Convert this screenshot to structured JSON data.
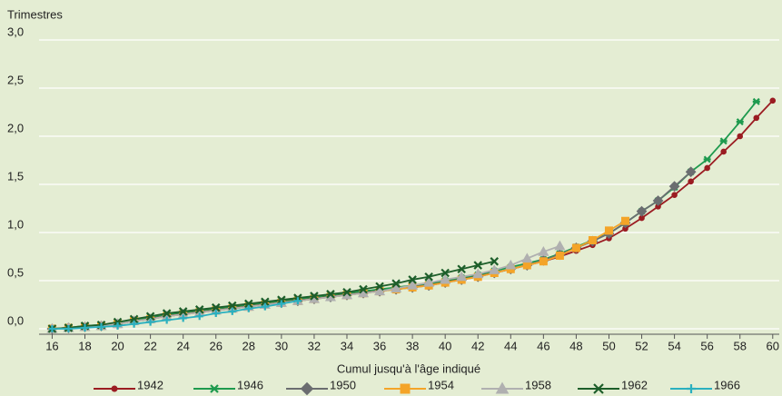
{
  "chart_data": {
    "type": "line",
    "y_label": "Trimestres",
    "x_label": "Cumul jusqu'à l'âge indiqué",
    "x": [
      16,
      17,
      18,
      19,
      20,
      21,
      22,
      23,
      24,
      25,
      26,
      27,
      28,
      29,
      30,
      31,
      32,
      33,
      34,
      35,
      36,
      37,
      38,
      39,
      40,
      41,
      42,
      43,
      44,
      45,
      46,
      47,
      48,
      49,
      50,
      51,
      52,
      53,
      54,
      55,
      56,
      57,
      58,
      59,
      60
    ],
    "xlim": [
      15.2,
      60.4
    ],
    "xticks": [
      16,
      18,
      20,
      22,
      24,
      26,
      28,
      30,
      32,
      34,
      36,
      38,
      40,
      42,
      44,
      46,
      48,
      50,
      52,
      54,
      56,
      58,
      60
    ],
    "ylim": [
      0,
      3
    ],
    "yticks": [
      {
        "value": 0,
        "label": "0,0"
      },
      {
        "value": 0.5,
        "label": "0,5"
      },
      {
        "value": 1,
        "label": "1,0"
      },
      {
        "value": 1.5,
        "label": "1,5"
      },
      {
        "value": 2,
        "label": "2,0"
      },
      {
        "value": 2.5,
        "label": "2,5"
      },
      {
        "value": 3,
        "label": "3,0"
      }
    ],
    "grid": true,
    "series": [
      {
        "name": "1942",
        "color": "#9b1c22",
        "marker": "circle",
        "values": [
          0,
          0.01,
          0.02,
          0.03,
          0.05,
          0.08,
          0.11,
          0.14,
          0.16,
          0.18,
          0.2,
          0.22,
          0.24,
          0.26,
          0.28,
          0.3,
          0.32,
          0.34,
          0.36,
          0.38,
          0.4,
          0.42,
          0.44,
          0.46,
          0.49,
          0.52,
          0.55,
          0.58,
          0.62,
          0.66,
          0.7,
          0.75,
          0.81,
          0.87,
          0.94,
          1.04,
          1.15,
          1.27,
          1.39,
          1.53,
          1.67,
          1.84,
          2.0,
          2.19,
          2.37
        ]
      },
      {
        "name": "1946",
        "color": "#1e9a4e",
        "marker": "star",
        "values": [
          0,
          0.01,
          0.03,
          0.04,
          0.06,
          0.09,
          0.12,
          0.15,
          0.17,
          0.19,
          0.21,
          0.23,
          0.25,
          0.27,
          0.29,
          0.31,
          0.33,
          0.35,
          0.37,
          0.39,
          0.41,
          0.43,
          0.45,
          0.47,
          0.5,
          0.53,
          0.56,
          0.6,
          0.64,
          0.68,
          0.72,
          0.78,
          0.85,
          0.92,
          0.99,
          1.1,
          1.22,
          1.33,
          1.47,
          1.63,
          1.76,
          1.95,
          2.15,
          2.36,
          null
        ]
      },
      {
        "name": "1950",
        "color": "#6b6d70",
        "marker": "diamond",
        "values": [
          0,
          0.01,
          0.02,
          0.03,
          0.05,
          0.08,
          0.1,
          0.13,
          0.15,
          0.17,
          0.19,
          0.21,
          0.23,
          0.25,
          0.27,
          0.29,
          0.31,
          0.33,
          0.35,
          0.37,
          0.39,
          0.41,
          0.43,
          0.45,
          0.48,
          0.51,
          0.54,
          0.58,
          0.62,
          0.66,
          0.71,
          0.77,
          0.84,
          0.91,
          0.99,
          1.1,
          1.22,
          1.33,
          1.48,
          1.63,
          null,
          null,
          null,
          null,
          null
        ]
      },
      {
        "name": "1954",
        "color": "#f4a428",
        "marker": "square",
        "values": [
          0,
          0.01,
          0.02,
          0.03,
          0.05,
          0.08,
          0.1,
          0.13,
          0.15,
          0.17,
          0.19,
          0.21,
          0.23,
          0.25,
          0.27,
          0.29,
          0.31,
          0.33,
          0.35,
          0.37,
          0.39,
          0.41,
          0.43,
          0.45,
          0.48,
          0.51,
          0.54,
          0.58,
          0.62,
          0.66,
          0.7,
          0.76,
          0.84,
          0.92,
          1.02,
          1.12,
          null,
          null,
          null,
          null,
          null,
          null,
          null,
          null,
          null
        ]
      },
      {
        "name": "1958",
        "color": "#b0b0b0",
        "marker": "triangle",
        "values": [
          0,
          0.01,
          0.02,
          0.03,
          0.05,
          0.08,
          0.1,
          0.13,
          0.15,
          0.17,
          0.19,
          0.21,
          0.23,
          0.25,
          0.27,
          0.29,
          0.31,
          0.33,
          0.35,
          0.37,
          0.39,
          0.42,
          0.45,
          0.48,
          0.51,
          0.54,
          0.57,
          0.61,
          0.66,
          0.73,
          0.8,
          0.86,
          null,
          null,
          null,
          null,
          null,
          null,
          null,
          null,
          null,
          null,
          null,
          null,
          null
        ]
      },
      {
        "name": "1962",
        "color": "#1d5e2a",
        "marker": "x",
        "values": [
          0,
          0.01,
          0.03,
          0.04,
          0.07,
          0.1,
          0.13,
          0.16,
          0.18,
          0.2,
          0.22,
          0.24,
          0.26,
          0.28,
          0.3,
          0.32,
          0.34,
          0.36,
          0.38,
          0.41,
          0.44,
          0.47,
          0.51,
          0.54,
          0.58,
          0.62,
          0.66,
          0.7,
          null,
          null,
          null,
          null,
          null,
          null,
          null,
          null,
          null,
          null,
          null,
          null,
          null,
          null,
          null,
          null,
          null
        ]
      },
      {
        "name": "1966",
        "color": "#2ab0bf",
        "marker": "plus",
        "values": [
          0,
          0.0,
          0.01,
          0.02,
          0.03,
          0.05,
          0.07,
          0.09,
          0.11,
          0.13,
          0.16,
          0.18,
          0.21,
          0.23,
          0.26,
          0.29,
          null,
          null,
          null,
          null,
          null,
          null,
          null,
          null,
          null,
          null,
          null,
          null,
          null,
          null,
          null,
          null,
          null,
          null,
          null,
          null,
          null,
          null,
          null,
          null,
          null,
          null,
          null,
          null,
          null
        ]
      }
    ]
  }
}
